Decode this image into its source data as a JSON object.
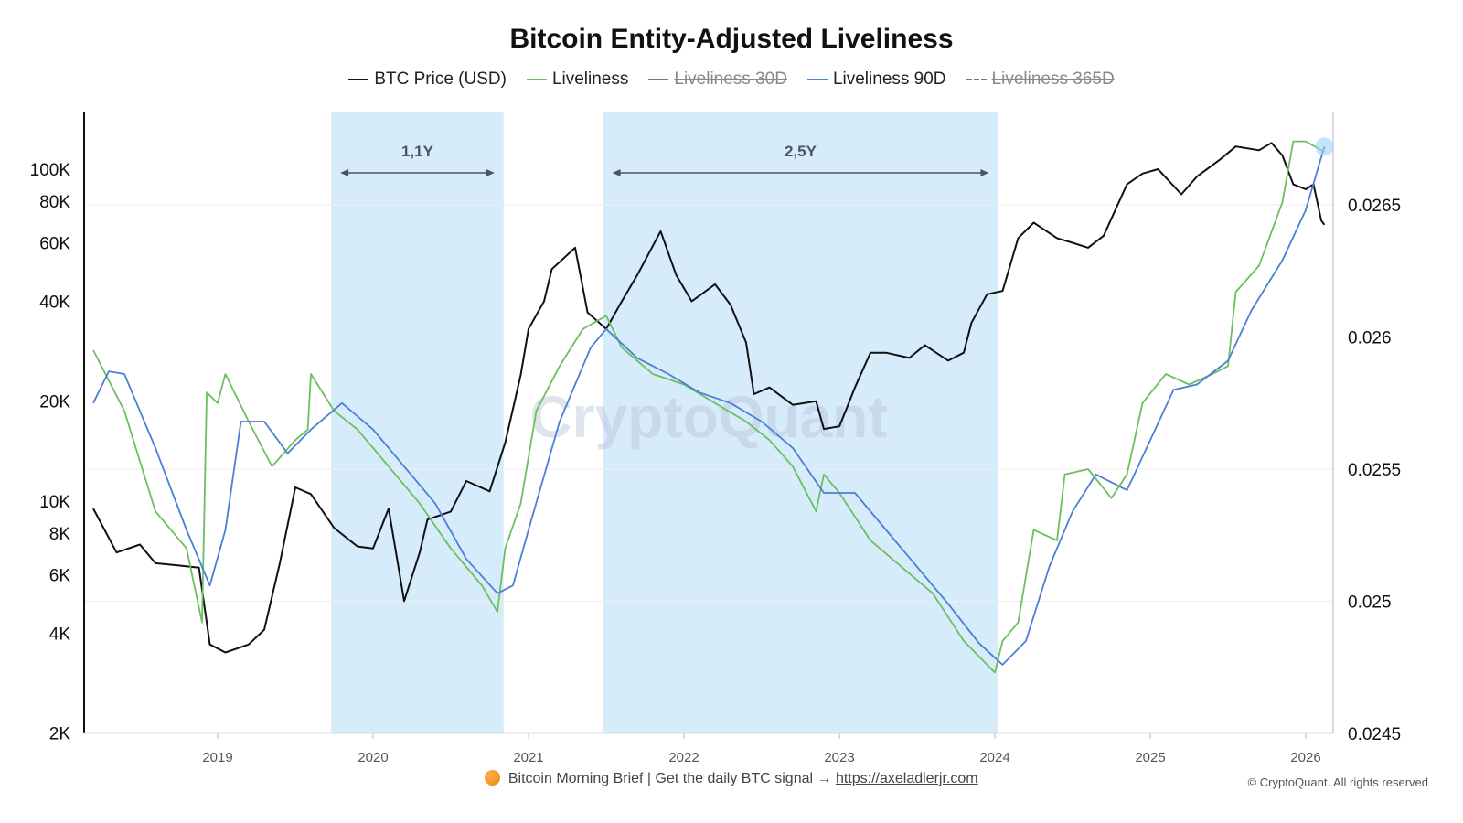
{
  "title": "Bitcoin Entity-Adjusted Liveliness",
  "legend": [
    {
      "label": "BTC Price (USD)",
      "color": "#111111",
      "style": "solid",
      "enabled": true
    },
    {
      "label": "Liveliness",
      "color": "#6cbf5e",
      "style": "solid",
      "enabled": true
    },
    {
      "label": "Liveliness 30D",
      "color": "#777777",
      "style": "solid",
      "enabled": false
    },
    {
      "label": "Liveliness 90D",
      "color": "#4a7fd6",
      "style": "solid",
      "enabled": true
    },
    {
      "label": "Liveliness 365D",
      "color": "#777777",
      "style": "dashed",
      "enabled": false
    }
  ],
  "footer": {
    "icon": "orange-circle-icon",
    "text": "Bitcoin Morning Brief | Get the daily BTC signal →",
    "link": "https://axeladlerjr.com"
  },
  "copyright": "© CryptoQuant. All rights reserved",
  "watermark": "CryptoQuant",
  "chart_data": {
    "type": "line",
    "x_ticks": [
      "2019",
      "2020",
      "2021",
      "2022",
      "2023",
      "2024",
      "2025",
      "2026"
    ],
    "xlim": [
      2018.15,
      2026.2
    ],
    "left_axis": {
      "scale": "log",
      "ylim": [
        2000,
        160000
      ],
      "ticks": [
        2000,
        4000,
        6000,
        8000,
        10000,
        20000,
        40000,
        60000,
        80000,
        100000
      ],
      "tick_labels": [
        "2K",
        "4K",
        "6K",
        "8K",
        "10K",
        "20K",
        "40K",
        "60K",
        "80K",
        "100K"
      ]
    },
    "right_axis": {
      "scale": "linear",
      "ylim": [
        0.0245,
        0.02685
      ],
      "ticks": [
        0.0245,
        0.025,
        0.0255,
        0.026,
        0.0265
      ],
      "tick_labels": [
        "0.0245",
        "0.025",
        "0.0255",
        "0.026",
        "0.0265"
      ]
    },
    "shaded_regions": [
      {
        "start": 2019.73,
        "end": 2020.84,
        "label": "1,1Y",
        "color": "#d6ecfb"
      },
      {
        "start": 2021.48,
        "end": 2024.02,
        "label": "2,5Y",
        "color": "#d6ecfb"
      }
    ],
    "series": [
      {
        "name": "BTC Price (USD)",
        "axis": "left",
        "color": "#111111",
        "points": [
          [
            2018.2,
            9500
          ],
          [
            2018.35,
            7000
          ],
          [
            2018.5,
            7400
          ],
          [
            2018.6,
            6500
          ],
          [
            2018.75,
            6400
          ],
          [
            2018.88,
            6300
          ],
          [
            2018.95,
            3700
          ],
          [
            2019.05,
            3500
          ],
          [
            2019.2,
            3700
          ],
          [
            2019.3,
            4100
          ],
          [
            2019.4,
            6500
          ],
          [
            2019.5,
            11000
          ],
          [
            2019.6,
            10500
          ],
          [
            2019.75,
            8300
          ],
          [
            2019.9,
            7300
          ],
          [
            2020.0,
            7200
          ],
          [
            2020.1,
            9500
          ],
          [
            2020.2,
            5000
          ],
          [
            2020.3,
            7000
          ],
          [
            2020.35,
            8800
          ],
          [
            2020.5,
            9300
          ],
          [
            2020.6,
            11500
          ],
          [
            2020.75,
            10700
          ],
          [
            2020.85,
            15000
          ],
          [
            2020.95,
            24000
          ],
          [
            2021.0,
            33000
          ],
          [
            2021.1,
            40000
          ],
          [
            2021.15,
            50000
          ],
          [
            2021.3,
            58000
          ],
          [
            2021.38,
            37000
          ],
          [
            2021.5,
            33000
          ],
          [
            2021.6,
            40000
          ],
          [
            2021.7,
            48000
          ],
          [
            2021.85,
            65000
          ],
          [
            2021.95,
            48000
          ],
          [
            2022.05,
            40000
          ],
          [
            2022.2,
            45000
          ],
          [
            2022.3,
            39000
          ],
          [
            2022.4,
            30000
          ],
          [
            2022.45,
            21000
          ],
          [
            2022.55,
            22000
          ],
          [
            2022.7,
            19500
          ],
          [
            2022.85,
            20000
          ],
          [
            2022.9,
            16500
          ],
          [
            2023.0,
            16800
          ],
          [
            2023.1,
            22000
          ],
          [
            2023.2,
            28000
          ],
          [
            2023.3,
            28000
          ],
          [
            2023.45,
            27000
          ],
          [
            2023.55,
            29500
          ],
          [
            2023.7,
            26500
          ],
          [
            2023.8,
            28000
          ],
          [
            2023.85,
            34500
          ],
          [
            2023.95,
            42000
          ],
          [
            2024.05,
            43000
          ],
          [
            2024.15,
            62000
          ],
          [
            2024.25,
            69000
          ],
          [
            2024.4,
            62000
          ],
          [
            2024.5,
            60000
          ],
          [
            2024.6,
            58000
          ],
          [
            2024.7,
            63000
          ],
          [
            2024.85,
            90000
          ],
          [
            2024.95,
            97000
          ],
          [
            2025.05,
            100000
          ],
          [
            2025.2,
            84000
          ],
          [
            2025.3,
            95000
          ],
          [
            2025.45,
            107000
          ],
          [
            2025.55,
            117000
          ],
          [
            2025.7,
            114000
          ],
          [
            2025.78,
            120000
          ],
          [
            2025.85,
            110000
          ],
          [
            2025.92,
            90000
          ],
          [
            2026.0,
            87000
          ],
          [
            2026.05,
            90000
          ],
          [
            2026.1,
            70000
          ],
          [
            2026.12,
            68000
          ]
        ]
      },
      {
        "name": "Liveliness",
        "axis": "right",
        "color": "#6cbf5e",
        "points": [
          [
            2018.2,
            0.02595
          ],
          [
            2018.4,
            0.02572
          ],
          [
            2018.6,
            0.02534
          ],
          [
            2018.8,
            0.0252
          ],
          [
            2018.9,
            0.02492
          ],
          [
            2018.93,
            0.02579
          ],
          [
            2019.0,
            0.02575
          ],
          [
            2019.05,
            0.02586
          ],
          [
            2019.2,
            0.02568
          ],
          [
            2019.35,
            0.02551
          ],
          [
            2019.5,
            0.02561
          ],
          [
            2019.58,
            0.02565
          ],
          [
            2019.6,
            0.02586
          ],
          [
            2019.75,
            0.02572
          ],
          [
            2019.9,
            0.02565
          ],
          [
            2020.1,
            0.02551
          ],
          [
            2020.3,
            0.02537
          ],
          [
            2020.5,
            0.0252
          ],
          [
            2020.7,
            0.02506
          ],
          [
            2020.8,
            0.02496
          ],
          [
            2020.85,
            0.0252
          ],
          [
            2020.95,
            0.02537
          ],
          [
            2021.05,
            0.02572
          ],
          [
            2021.2,
            0.02589
          ],
          [
            2021.35,
            0.02603
          ],
          [
            2021.5,
            0.02608
          ],
          [
            2021.6,
            0.02596
          ],
          [
            2021.8,
            0.02586
          ],
          [
            2022.0,
            0.02582
          ],
          [
            2022.2,
            0.02575
          ],
          [
            2022.4,
            0.02568
          ],
          [
            2022.55,
            0.02561
          ],
          [
            2022.7,
            0.02551
          ],
          [
            2022.85,
            0.02534
          ],
          [
            2022.9,
            0.02548
          ],
          [
            2023.0,
            0.02541
          ],
          [
            2023.2,
            0.02523
          ],
          [
            2023.4,
            0.02513
          ],
          [
            2023.6,
            0.02503
          ],
          [
            2023.8,
            0.02485
          ],
          [
            2024.0,
            0.02473
          ],
          [
            2024.05,
            0.02485
          ],
          [
            2024.15,
            0.02492
          ],
          [
            2024.25,
            0.02527
          ],
          [
            2024.4,
            0.02523
          ],
          [
            2024.45,
            0.02548
          ],
          [
            2024.6,
            0.0255
          ],
          [
            2024.75,
            0.02539
          ],
          [
            2024.85,
            0.02548
          ],
          [
            2024.95,
            0.02575
          ],
          [
            2025.1,
            0.02586
          ],
          [
            2025.25,
            0.02582
          ],
          [
            2025.4,
            0.02586
          ],
          [
            2025.5,
            0.02589
          ],
          [
            2025.55,
            0.02617
          ],
          [
            2025.7,
            0.02627
          ],
          [
            2025.85,
            0.02651
          ],
          [
            2025.92,
            0.02674
          ],
          [
            2026.0,
            0.02674
          ],
          [
            2026.12,
            0.0267
          ]
        ]
      },
      {
        "name": "Liveliness 90D",
        "axis": "right",
        "color": "#4a7fd6",
        "points": [
          [
            2018.2,
            0.02575
          ],
          [
            2018.3,
            0.02587
          ],
          [
            2018.4,
            0.02586
          ],
          [
            2018.6,
            0.02558
          ],
          [
            2018.8,
            0.02527
          ],
          [
            2018.95,
            0.02506
          ],
          [
            2019.05,
            0.02527
          ],
          [
            2019.15,
            0.02568
          ],
          [
            2019.3,
            0.02568
          ],
          [
            2019.45,
            0.02556
          ],
          [
            2019.6,
            0.02565
          ],
          [
            2019.8,
            0.02575
          ],
          [
            2020.0,
            0.02565
          ],
          [
            2020.2,
            0.02551
          ],
          [
            2020.4,
            0.02537
          ],
          [
            2020.6,
            0.02516
          ],
          [
            2020.8,
            0.02503
          ],
          [
            2020.9,
            0.02506
          ],
          [
            2021.0,
            0.02527
          ],
          [
            2021.2,
            0.02568
          ],
          [
            2021.4,
            0.02596
          ],
          [
            2021.5,
            0.02603
          ],
          [
            2021.7,
            0.02592
          ],
          [
            2021.9,
            0.02586
          ],
          [
            2022.1,
            0.02579
          ],
          [
            2022.3,
            0.02575
          ],
          [
            2022.5,
            0.02568
          ],
          [
            2022.7,
            0.02558
          ],
          [
            2022.9,
            0.02541
          ],
          [
            2023.1,
            0.02541
          ],
          [
            2023.3,
            0.02527
          ],
          [
            2023.5,
            0.02513
          ],
          [
            2023.7,
            0.02499
          ],
          [
            2023.9,
            0.02484
          ],
          [
            2024.05,
            0.02476
          ],
          [
            2024.2,
            0.02485
          ],
          [
            2024.35,
            0.02513
          ],
          [
            2024.5,
            0.02534
          ],
          [
            2024.65,
            0.02548
          ],
          [
            2024.85,
            0.02542
          ],
          [
            2025.0,
            0.02561
          ],
          [
            2025.15,
            0.0258
          ],
          [
            2025.3,
            0.02582
          ],
          [
            2025.5,
            0.02591
          ],
          [
            2025.65,
            0.0261
          ],
          [
            2025.85,
            0.02629
          ],
          [
            2026.0,
            0.02648
          ],
          [
            2026.12,
            0.02672
          ]
        ]
      }
    ]
  }
}
